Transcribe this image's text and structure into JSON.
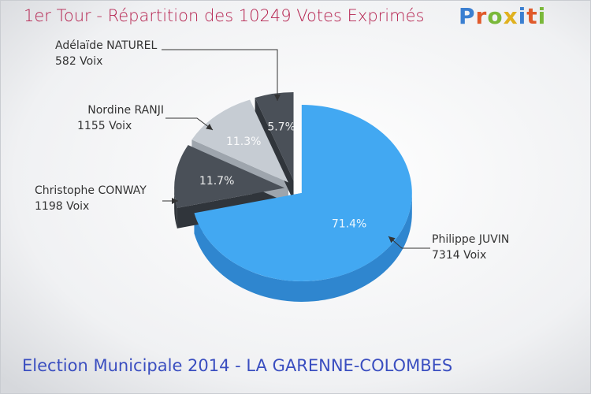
{
  "header": {
    "title": "1er Tour - Répartition des 10249 Votes Exprimés"
  },
  "logo": {
    "text": "Proxiti",
    "letter_colors": [
      "#3a7fd1",
      "#e05a2b",
      "#7ab83a",
      "#e0b11f",
      "#3a7fd1",
      "#e05a2b",
      "#7ab83a"
    ]
  },
  "footer": {
    "title": "Election Municipale 2014 - LA GARENNE-COLOMBES"
  },
  "chart_data": {
    "type": "pie",
    "title": "1er Tour - Répartition des 10249 Votes Exprimés",
    "total": 10249,
    "unit": "Voix",
    "series": [
      {
        "name": "Philippe JUVIN",
        "value": 7314,
        "percent_label": "71.4%",
        "votes_label": "7314 Voix",
        "color": "#42a8f2",
        "side_color": "#2f86cf"
      },
      {
        "name": "Christophe CONWAY",
        "value": 1198,
        "percent_label": "11.7%",
        "votes_label": "1198 Voix",
        "color": "#4a5058",
        "side_color": "#30353b"
      },
      {
        "name": "Nordine RANJI",
        "value": 1155,
        "percent_label": "11.3%",
        "votes_label": "1155 Voix",
        "color": "#c6ccd3",
        "side_color": "#9ea5ad"
      },
      {
        "name": "Adélaïde NATUREL",
        "value": 582,
        "percent_label": "5.7%",
        "votes_label": "582 Voix",
        "color": "#4a5058",
        "side_color": "#30353b"
      }
    ]
  }
}
